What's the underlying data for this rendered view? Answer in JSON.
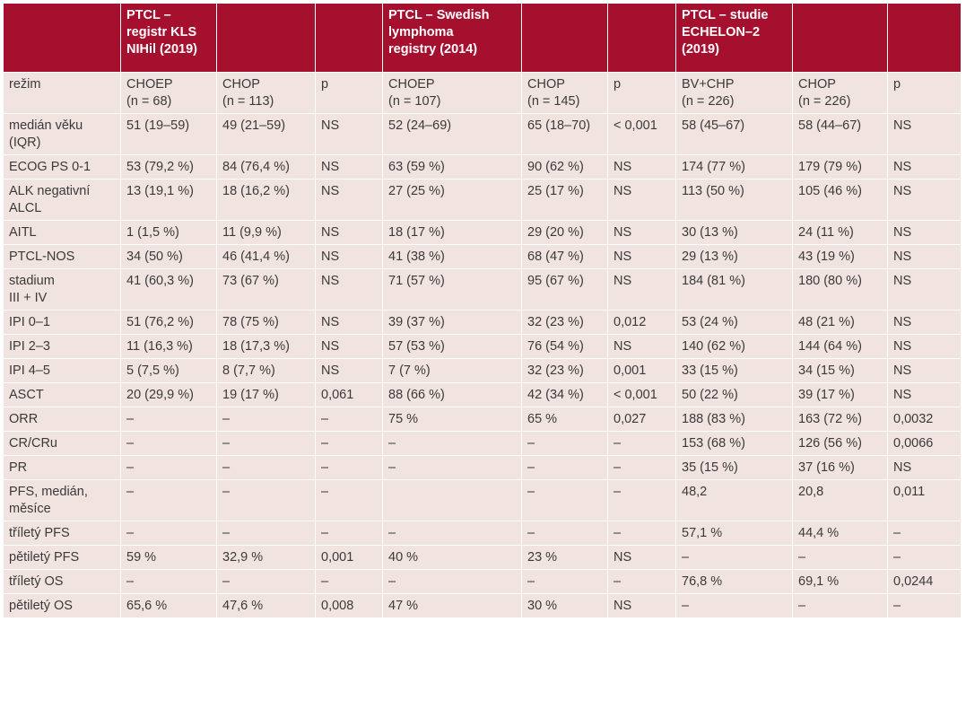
{
  "header": [
    "",
    "PTCL –\nregistr KLS\nNIHil (2019)",
    "",
    "",
    "PTCL – Swedish\nlymphoma\nregistry (2014)",
    "",
    "",
    "PTCL – studie\nECHELON–2\n(2019)",
    "",
    ""
  ],
  "rows": [
    [
      "režim",
      "CHOEP\n(n = 68)",
      "CHOP\n(n = 113)",
      "p",
      "CHOEP\n (n = 107)",
      "CHOP\n(n = 145)",
      "p",
      "BV+CHP\n(n = 226)",
      "CHOP\n(n = 226)",
      "p"
    ],
    [
      "medián věku\n(IQR)",
      "51 (19–59)",
      "49 (21–59)",
      "NS",
      "52 (24–69)",
      "65 (18–70)",
      "< 0,001",
      "58 (45–67)",
      "58 (44–67)",
      "NS"
    ],
    [
      "ECOG PS 0-1",
      "53 (79,2 %)",
      "84 (76,4 %)",
      "NS",
      "63 (59 %)",
      "90 (62 %)",
      "NS",
      "174 (77 %)",
      "179 (79 %)",
      "NS"
    ],
    [
      "ALK negativní\nALCL",
      "13 (19,1 %)",
      "18 (16,2 %)",
      "NS",
      "27 (25 %)",
      "25 (17 %)",
      "NS",
      "113 (50 %)",
      "105 (46 %)",
      "NS"
    ],
    [
      "AITL",
      "1 (1,5 %)",
      "11 (9,9 %)",
      "NS",
      "18 (17 %)",
      "29 (20 %)",
      "NS",
      "30 (13 %)",
      "24 (11 %)",
      "NS"
    ],
    [
      "PTCL-NOS",
      "34 (50 %)",
      "46 (41,4 %)",
      "NS",
      "41 (38 %)",
      "68 (47 %)",
      "NS",
      "29 (13 %)",
      "43 (19 %)",
      "NS"
    ],
    [
      "stadium\nIII + IV",
      "41 (60,3 %)",
      "73 (67 %)",
      "NS",
      "71 (57 %)",
      "95 (67 %)",
      "NS",
      "184 (81 %)",
      "180 (80 %)",
      "NS"
    ],
    [
      "IPI 0–1",
      "51 (76,2 %)",
      "78 (75 %)",
      "NS",
      "39 (37 %)",
      "32 (23 %)",
      "0,012",
      "53 (24 %)",
      "48 (21 %)",
      "NS"
    ],
    [
      "IPI 2–3",
      "11 (16,3 %)",
      "18 (17,3 %)",
      "NS",
      "57 (53 %)",
      "76 (54 %)",
      "NS",
      "140 (62 %)",
      "144 (64 %)",
      "NS"
    ],
    [
      "IPI 4–5",
      "5 (7,5 %)",
      "8 (7,7 %)",
      "NS",
      "7 (7 %)",
      "32 (23 %)",
      " 0,001",
      "33 (15 %)",
      "34 (15 %)",
      "NS"
    ],
    [
      "ASCT",
      "20 (29,9 %)",
      "19 (17 %)",
      "0,061",
      "88 (66 %)",
      "42 (34 %)",
      "< 0,001",
      "50 (22 %)",
      "39 (17 %)",
      "NS"
    ],
    [
      "ORR",
      "–",
      "–",
      "–",
      "75 %",
      "65 %",
      "0,027",
      "188 (83 %)",
      "163 (72 %)",
      "0,0032"
    ],
    [
      "CR/CRu",
      "–",
      "–",
      "–",
      "–",
      "–",
      "–",
      "153 (68 %)",
      "126 (56 %)",
      "0,0066"
    ],
    [
      "PR",
      "–",
      "–",
      "–",
      "–",
      "–",
      "–",
      "35 (15 %)",
      "37 (16 %)",
      "NS"
    ],
    [
      "PFS, medián,\nměsíce",
      "–",
      "–",
      "–",
      "",
      "–",
      "–",
      "48,2",
      "20,8",
      "0,011"
    ],
    [
      "tříletý PFS",
      "–",
      "–",
      "–",
      "–",
      "–",
      "–",
      "57,1 %",
      "44,4 %",
      "–"
    ],
    [
      "pětiletý PFS",
      "59 %",
      "32,9 %",
      "0,001",
      "40 %",
      "23 %",
      "NS",
      "–",
      "–",
      "–"
    ],
    [
      "tříletý OS",
      "–",
      "–",
      "–",
      "–",
      "–",
      "–",
      "76,8 %",
      "69,1 %",
      "0,0244"
    ],
    [
      "pětiletý OS",
      "65,6 %",
      "47,6 %",
      "0,008",
      "47 %",
      "30 %",
      "NS",
      "–",
      "–",
      "–"
    ]
  ],
  "colors": {
    "header_bg": "#a6102f",
    "cell_bg": "#f1e3e0",
    "text": "#3a3a3a"
  }
}
